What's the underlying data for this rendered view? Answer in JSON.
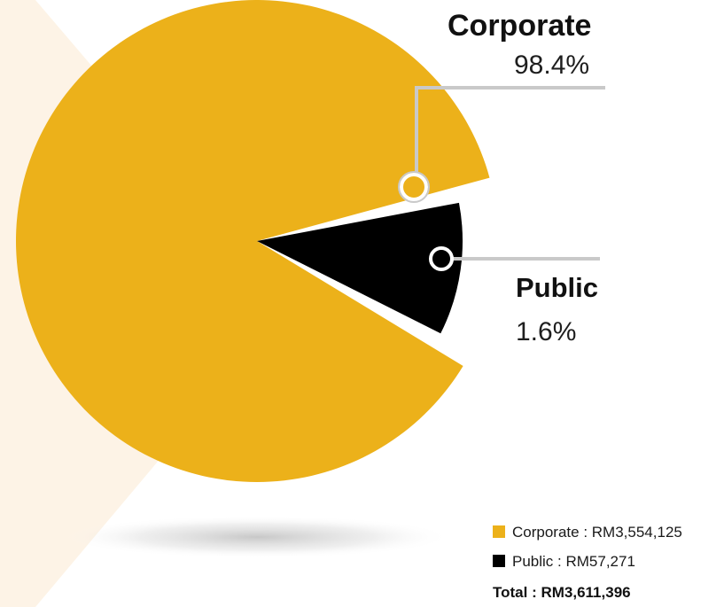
{
  "chart_data": {
    "type": "pie",
    "slices": [
      {
        "name": "Corporate",
        "percent": 98.4,
        "percent_label": "98.4%",
        "amount": "RM3,554,125",
        "color": "#ecb11a"
      },
      {
        "name": "Public",
        "percent": 1.6,
        "percent_label": "1.6%",
        "amount": "RM57,271",
        "color": "#000000"
      }
    ],
    "legend": {
      "items": [
        {
          "label": "Corporate",
          "separator": " : ",
          "value": "RM3,554,125",
          "color": "#ecb11a"
        },
        {
          "label": "Public",
          "separator": " : ",
          "value": "RM57,271",
          "color": "#000000"
        }
      ],
      "total_label": "Total",
      "total_separator": " : ",
      "total_value": "RM3,611,396",
      "placement": "bottom-right"
    }
  },
  "colors": {
    "corporate": "#ecb11a",
    "public": "#000000",
    "leader_line": "#c9c9c9",
    "background_accent": "#fdf3e6"
  }
}
